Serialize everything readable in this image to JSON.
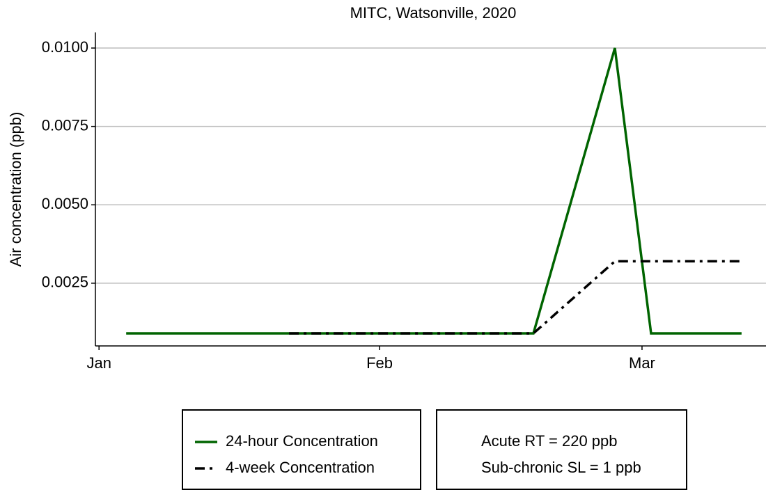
{
  "chart_data": {
    "type": "line",
    "title": "MITC, Watsonville, 2020",
    "y_label": "Air  concentration  (ppb)",
    "xlim": [
      -0.4,
      73.7
    ],
    "xticks": [
      {
        "value": 0,
        "label": "Jan"
      },
      {
        "value": 31,
        "label": "Feb"
      },
      {
        "value": 60,
        "label": "Mar"
      }
    ],
    "ylim": [
      0.0005,
      0.0105
    ],
    "yticks": [
      {
        "value": 0.0025,
        "label": "0.0025"
      },
      {
        "value": 0.005,
        "label": "0.0050"
      },
      {
        "value": 0.0075,
        "label": "0.0075"
      },
      {
        "value": 0.01,
        "label": "0.0100"
      }
    ],
    "grid": true,
    "series": [
      {
        "name": "24-hour Concentration",
        "color": "#006400",
        "dash": "solid",
        "x": [
          3,
          48,
          57,
          61,
          71
        ],
        "values": [
          0.0009,
          0.0009,
          0.01,
          0.0009,
          0.0009
        ]
      },
      {
        "name": "4-week Concentration",
        "color": "#000000",
        "dash": "dashdot",
        "x": [
          21,
          48,
          57,
          71
        ],
        "values": [
          0.0009,
          0.0009,
          0.0032,
          0.0032
        ]
      }
    ],
    "annotations": [
      "Acute RT = 220 ppb",
      "Sub-chronic SL = 1 ppb"
    ]
  }
}
